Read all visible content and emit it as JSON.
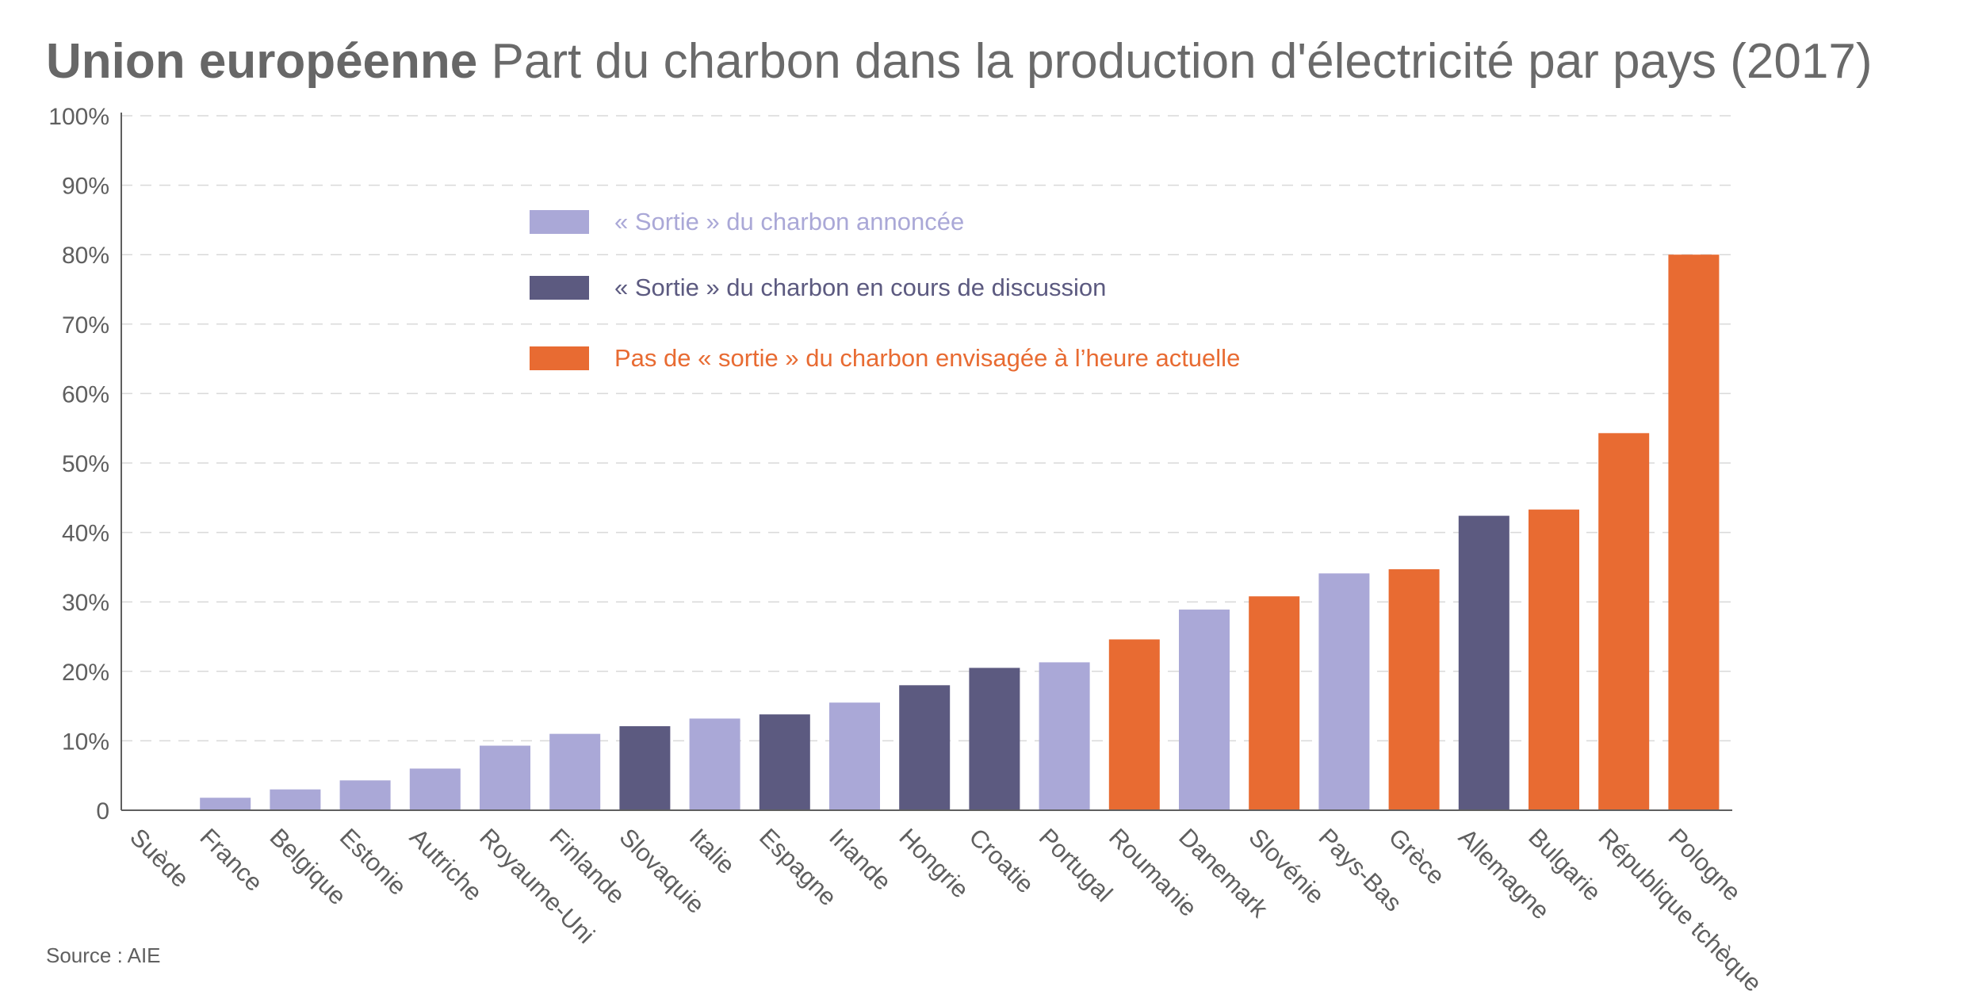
{
  "title": {
    "bold": "Union européenne",
    "rest": "Part du charbon dans la production d'électricité par pays (2017)"
  },
  "source": "Source : AIE",
  "colors": {
    "announced": "#aaa8d7",
    "discussion": "#5c5a80",
    "none": "#e86b32",
    "axis": "#5f5f5f",
    "grid": "#d9d9d9"
  },
  "legend": [
    {
      "key": "announced",
      "label": "« Sortie » du charbon annoncée",
      "color": "#aaa8d7"
    },
    {
      "key": "discussion",
      "label": "« Sortie » du charbon en cours de discussion",
      "color": "#5c5a80"
    },
    {
      "key": "none",
      "label": "Pas de « sortie » du charbon envisagée à l’heure actuelle",
      "color": "#e86b32"
    }
  ],
  "chart_data": {
    "type": "bar",
    "title": "Union européenne Part du charbon dans la production d'électricité par pays (2017)",
    "ylim": [
      0,
      100
    ],
    "yticks": [
      "0",
      "10%",
      "20%",
      "30%",
      "40%",
      "50%",
      "60%",
      "70%",
      "80%",
      "90%",
      "100%"
    ],
    "grid": true,
    "legend_position": "top-left",
    "categories": [
      "Suède",
      "France",
      "Belgique",
      "Estonie",
      "Autriche",
      "Royaume-Uni",
      "Finlande",
      "Slovaquie",
      "Italie",
      "Espagne",
      "Irlande",
      "Hongrie",
      "Croatie",
      "Portugal",
      "Roumanie",
      "Danemark",
      "Slovénie",
      "Pays-Bas",
      "Grèce",
      "Allemagne",
      "Bulgarie",
      "République tchèque",
      "Pologne"
    ],
    "values": [
      0,
      1.8,
      3.0,
      4.3,
      6.0,
      9.3,
      11.0,
      12.1,
      13.2,
      13.8,
      15.5,
      18.0,
      20.5,
      21.3,
      24.6,
      28.9,
      30.8,
      34.1,
      34.7,
      42.4,
      43.3,
      54.3,
      80.0
    ],
    "status": [
      "announced",
      "announced",
      "announced",
      "announced",
      "announced",
      "announced",
      "announced",
      "discussion",
      "announced",
      "discussion",
      "announced",
      "discussion",
      "discussion",
      "announced",
      "none",
      "announced",
      "none",
      "announced",
      "none",
      "discussion",
      "none",
      "none",
      "none"
    ]
  }
}
